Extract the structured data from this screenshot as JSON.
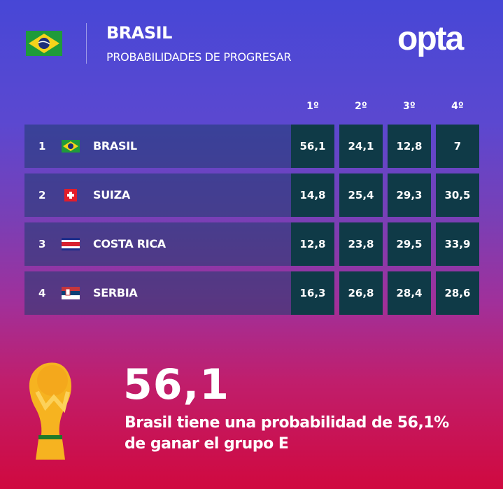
{
  "header": {
    "title": "BRASIL",
    "subtitle": "PROBABILIDADES DE PROGRESAR",
    "logo": "opta"
  },
  "columns": [
    "1º",
    "2º",
    "3º",
    "4º"
  ],
  "rows": [
    {
      "rank": "1",
      "team": "BRASIL",
      "flag": "brazil-flag-icon",
      "values": [
        "56,1",
        "24,1",
        "12,8",
        "7"
      ]
    },
    {
      "rank": "2",
      "team": "SUIZA",
      "flag": "switzerland-flag-icon",
      "values": [
        "14,8",
        "25,4",
        "29,3",
        "30,5"
      ]
    },
    {
      "rank": "3",
      "team": "COSTA RICA",
      "flag": "costa-rica-flag-icon",
      "values": [
        "12,8",
        "23,8",
        "29,5",
        "33,9"
      ]
    },
    {
      "rank": "4",
      "team": "SERBIA",
      "flag": "serbia-flag-icon",
      "values": [
        "16,3",
        "26,8",
        "28,4",
        "28,6"
      ]
    }
  ],
  "highlight": {
    "value": "56,1",
    "line1": "Brasil tiene una probabilidad de 56,1%",
    "line2": "de ganar el grupo E",
    "icon": "world-cup-trophy-icon"
  },
  "colors": {
    "cell": "#0f3a47",
    "row": "#1e3c6e",
    "top": "#4747d6",
    "bottom": "#d0093f"
  }
}
